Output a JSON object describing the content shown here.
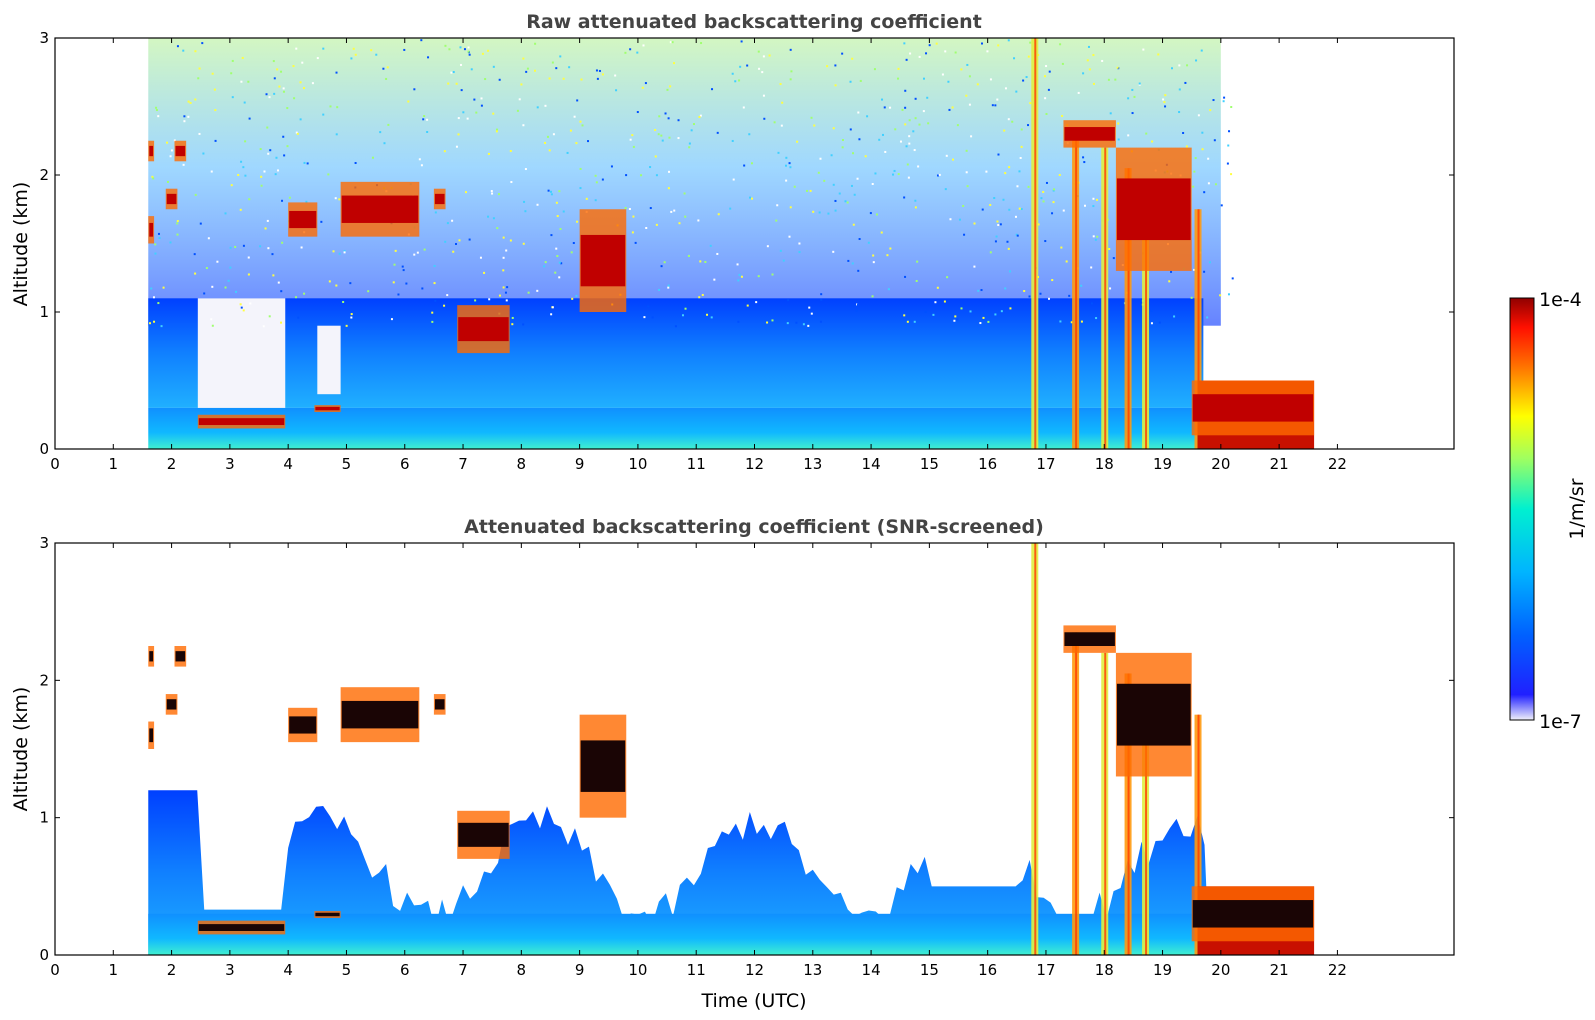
{
  "chart_data": [
    {
      "type": "heatmap",
      "title": "Raw attenuated backscattering coefficient",
      "xlabel": "",
      "ylabel": "Altitude (km)",
      "xlim": [
        0,
        24
      ],
      "ylim": [
        0,
        3
      ],
      "x_ticks": [
        "0",
        "1",
        "2",
        "3",
        "4",
        "5",
        "6",
        "7",
        "8",
        "9",
        "10",
        "11",
        "12",
        "13",
        "14",
        "15",
        "16",
        "17",
        "18",
        "19",
        "20",
        "21",
        "22"
      ],
      "y_ticks": [
        "0",
        "1",
        "2",
        "3"
      ],
      "data_time_range": [
        1.6,
        21.6
      ],
      "screened": false,
      "cloud_layers": [
        {
          "t": [
            1.6,
            1.7
          ],
          "alt": [
            1.5,
            1.7
          ]
        },
        {
          "t": [
            1.6,
            1.7
          ],
          "alt": [
            2.1,
            2.25
          ]
        },
        {
          "t": [
            1.9,
            2.1
          ],
          "alt": [
            1.75,
            1.9
          ]
        },
        {
          "t": [
            2.05,
            2.25
          ],
          "alt": [
            2.1,
            2.25
          ]
        },
        {
          "t": [
            2.45,
            3.95
          ],
          "alt": [
            0.15,
            0.25
          ]
        },
        {
          "t": [
            4.0,
            4.5
          ],
          "alt": [
            1.55,
            1.8
          ]
        },
        {
          "t": [
            4.45,
            4.9
          ],
          "alt": [
            0.27,
            0.32
          ]
        },
        {
          "t": [
            4.9,
            6.25
          ],
          "alt": [
            1.55,
            1.95
          ]
        },
        {
          "t": [
            6.5,
            6.7
          ],
          "alt": [
            1.75,
            1.9
          ]
        },
        {
          "t": [
            6.9,
            7.8
          ],
          "alt": [
            0.7,
            1.05
          ]
        },
        {
          "t": [
            9.0,
            9.8
          ],
          "alt": [
            1.0,
            1.75
          ]
        },
        {
          "t": [
            17.3,
            18.2
          ],
          "alt": [
            2.2,
            2.4
          ]
        },
        {
          "t": [
            18.2,
            19.5
          ],
          "alt": [
            1.3,
            2.2
          ]
        },
        {
          "t": [
            19.5,
            21.6
          ],
          "alt": [
            0.1,
            0.5
          ]
        }
      ],
      "precipitation_columns": [
        16.8,
        17.5,
        18.0,
        18.4,
        18.7,
        19.6
      ]
    },
    {
      "type": "heatmap",
      "title": "Attenuated backscattering coefficient (SNR-screened)",
      "xlabel": "Time (UTC)",
      "ylabel": "Altitude (km)",
      "xlim": [
        0,
        24
      ],
      "ylim": [
        0,
        3
      ],
      "x_ticks": [
        "0",
        "1",
        "2",
        "3",
        "4",
        "5",
        "6",
        "7",
        "8",
        "9",
        "10",
        "11",
        "12",
        "13",
        "14",
        "15",
        "16",
        "17",
        "18",
        "19",
        "20",
        "21",
        "22"
      ],
      "y_ticks": [
        "0",
        "1",
        "2",
        "3"
      ],
      "data_time_range": [
        1.6,
        21.6
      ],
      "screened": true
    }
  ],
  "colorbar": {
    "label": "1/m/sr",
    "max_label": "1e-4",
    "min_label": "1e-7",
    "colormap": [
      "#f0f0fa",
      "#0000ff",
      "#0096ff",
      "#00e6e6",
      "#64ff96",
      "#ffff00",
      "#ff9600",
      "#ff1e00",
      "#960000"
    ]
  }
}
